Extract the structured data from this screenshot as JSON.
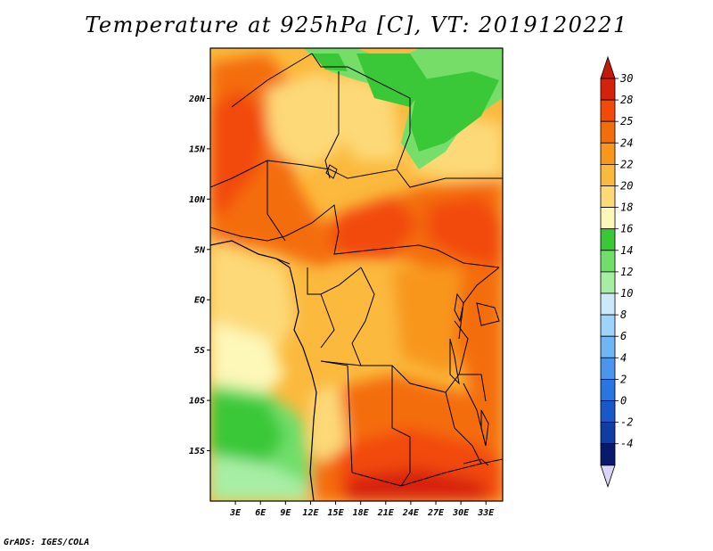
{
  "title": "Temperature at 925hPa [C], VT: 2019120221",
  "footer": "GrADS: IGES/COLA",
  "map": {
    "lat_labels": [
      "20N",
      "15N",
      "10N",
      "5N",
      "EQ",
      "5S",
      "10S",
      "15S"
    ],
    "lat_values": [
      20,
      15,
      10,
      5,
      0,
      -5,
      -10,
      -15
    ],
    "lon_labels": [
      "3E",
      "6E",
      "9E",
      "12E",
      "15E",
      "18E",
      "21E",
      "24E",
      "27E",
      "30E",
      "33E"
    ],
    "lon_values": [
      3,
      6,
      9,
      12,
      15,
      18,
      21,
      24,
      27,
      30,
      33
    ],
    "lon_range": [
      0,
      35
    ],
    "lat_range": [
      -20,
      25
    ]
  },
  "colorbar": {
    "labels": [
      "30",
      "28",
      "25",
      "24",
      "22",
      "20",
      "18",
      "16",
      "14",
      "12",
      "10",
      "8",
      "6",
      "4",
      "2",
      "0",
      "-2",
      "-4"
    ],
    "colors": [
      "#d7220b",
      "#f24a0b",
      "#f46d0b",
      "#f8961e",
      "#fbb93d",
      "#fdd978",
      "#fdf7b8",
      "#3ac838",
      "#6fde6a",
      "#a7eea5",
      "#cde8fb",
      "#9fd3f9",
      "#6fb6f5",
      "#4a96ec",
      "#2a76e0",
      "#1859c8",
      "#0f3da2",
      "#091a6c"
    ]
  }
}
